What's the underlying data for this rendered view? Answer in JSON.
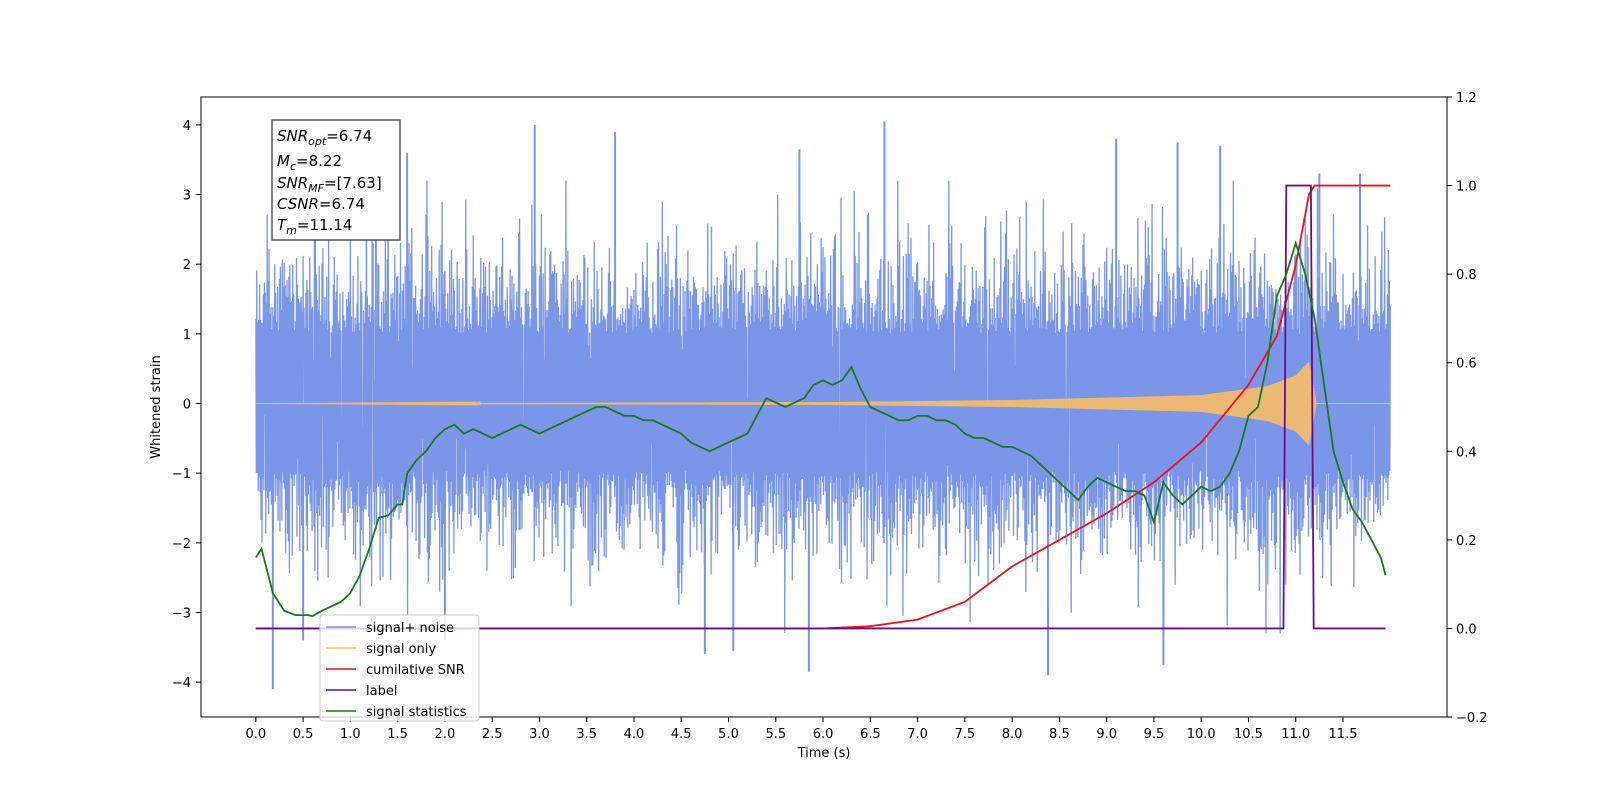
{
  "chart_data": {
    "type": "line",
    "xlabel": "Time (s)",
    "ylabel": "Whitened strain",
    "xlim": [
      -0.58,
      12.6
    ],
    "ylim": [
      -4.5,
      4.4
    ],
    "y2lim": [
      -0.2,
      1.2
    ],
    "x_ticks": [
      0.0,
      0.5,
      1.0,
      1.5,
      2.0,
      2.5,
      3.0,
      3.5,
      4.0,
      4.5,
      5.0,
      5.5,
      6.0,
      6.5,
      7.0,
      7.5,
      8.0,
      8.5,
      9.0,
      9.5,
      10.0,
      10.5,
      11.0,
      11.5
    ],
    "x_tick_labels": [
      "0.0",
      "0.5",
      "1.0",
      "1.5",
      "2.0",
      "2.5",
      "3.0",
      "3.5",
      "4.0",
      "4.5",
      "5.0",
      "5.5",
      "6.0",
      "6.5",
      "7.0",
      "7.5",
      "8.0",
      "8.5",
      "9.0",
      "9.5",
      "10.0",
      "10.5",
      "11.0",
      "11.5"
    ],
    "y_ticks": [
      -4,
      -3,
      -2,
      -1,
      0,
      1,
      2,
      3,
      4
    ],
    "y_tick_labels": [
      "−4",
      "−3",
      "−2",
      "−1",
      "0",
      "1",
      "2",
      "3",
      "4"
    ],
    "y2_ticks": [
      -0.2,
      0.0,
      0.2,
      0.4,
      0.6,
      0.8,
      1.0,
      1.2
    ],
    "y2_tick_labels": [
      "−0.2",
      "0.0",
      "0.2",
      "0.4",
      "0.6",
      "0.8",
      "1.0",
      "1.2"
    ],
    "legend_position": "lower-left",
    "grid": false,
    "colors": {
      "signal_noise": "#7b96e8",
      "signal_only": "#ffbf60",
      "cumulative_snr": "#e8141c",
      "label": "#6a0d83",
      "signal_statistics": "#1a7a1a"
    },
    "info_box": {
      "snr_opt": {
        "label": "SNR",
        "sub": "opt",
        "value": "=6.74"
      },
      "mc": {
        "label": "M",
        "sub": "c",
        "value": "=8.22"
      },
      "snr_mf": {
        "label": "SNR",
        "sub": "MF",
        "value": "=[7.63]"
      },
      "csnr": {
        "label": "CSNR",
        "sub": "",
        "value": "=6.74"
      },
      "tm": {
        "label": "T",
        "sub": "m",
        "value": "=11.14"
      }
    },
    "series": [
      {
        "name": "signal+ noise",
        "axis": "left",
        "style": "noisy-band",
        "x_range": [
          0.0,
          12.0
        ],
        "band_typical": [
          -1.6,
          2.0
        ],
        "peaks": [
          [
            1.27,
            2.4
          ],
          [
            1.6,
            3.6
          ],
          [
            2.95,
            4.0
          ],
          [
            3.8,
            3.9
          ],
          [
            5.75,
            3.65
          ],
          [
            6.65,
            4.05
          ],
          [
            9.1,
            3.8
          ],
          [
            9.75,
            3.75
          ],
          [
            10.2,
            3.7
          ],
          [
            11.25,
            3.3
          ],
          [
            11.68,
            3.3
          ]
        ],
        "troughs": [
          [
            0.18,
            -4.1
          ],
          [
            0.5,
            -3.4
          ],
          [
            2.0,
            -3.4
          ],
          [
            4.75,
            -3.6
          ],
          [
            5.05,
            -3.55
          ],
          [
            5.85,
            -3.85
          ],
          [
            8.38,
            -3.9
          ],
          [
            9.6,
            -3.75
          ]
        ]
      },
      {
        "name": "signal only",
        "axis": "left",
        "style": "chirp",
        "x_range": [
          0.0,
          12.0
        ],
        "amplitude_envelope": [
          [
            0.0,
            0.0
          ],
          [
            6.0,
            0.02
          ],
          [
            8.0,
            0.05
          ],
          [
            10.0,
            0.12
          ],
          [
            10.7,
            0.25
          ],
          [
            11.0,
            0.4
          ],
          [
            11.14,
            0.6
          ],
          [
            11.22,
            0.0
          ],
          [
            12.0,
            0.0
          ]
        ]
      },
      {
        "name": "cumilative SNR",
        "axis": "right",
        "x": [
          0.0,
          6.0,
          6.5,
          7.0,
          7.5,
          8.0,
          8.5,
          9.0,
          9.5,
          10.0,
          10.5,
          10.8,
          11.0,
          11.14,
          11.2,
          12.0
        ],
        "values": [
          0.0,
          0.0,
          0.005,
          0.02,
          0.06,
          0.14,
          0.2,
          0.26,
          0.33,
          0.42,
          0.55,
          0.66,
          0.82,
          0.98,
          1.0,
          1.0
        ]
      },
      {
        "name": "label",
        "axis": "right",
        "x": [
          0.0,
          10.87,
          10.9,
          11.16,
          11.19,
          11.95
        ],
        "values": [
          0.0,
          0.0,
          1.0,
          1.0,
          0.0,
          0.0
        ]
      },
      {
        "name": "signal statistics",
        "axis": "right",
        "x": [
          0.0,
          0.06,
          0.18,
          0.3,
          0.42,
          0.55,
          0.6,
          0.7,
          0.8,
          0.9,
          1.0,
          1.1,
          1.2,
          1.3,
          1.4,
          1.5,
          1.55,
          1.6,
          1.7,
          1.8,
          1.9,
          2.0,
          2.1,
          2.2,
          2.3,
          2.4,
          2.5,
          2.6,
          2.7,
          2.8,
          2.9,
          3.0,
          3.1,
          3.2,
          3.3,
          3.4,
          3.5,
          3.6,
          3.7,
          3.8,
          3.9,
          4.0,
          4.1,
          4.2,
          4.3,
          4.4,
          4.5,
          4.6,
          4.7,
          4.8,
          4.9,
          5.0,
          5.1,
          5.2,
          5.3,
          5.4,
          5.5,
          5.6,
          5.7,
          5.8,
          5.9,
          6.0,
          6.1,
          6.2,
          6.3,
          6.4,
          6.5,
          6.6,
          6.7,
          6.8,
          6.9,
          7.0,
          7.1,
          7.2,
          7.3,
          7.4,
          7.5,
          7.6,
          7.7,
          7.8,
          7.9,
          8.0,
          8.1,
          8.2,
          8.3,
          8.4,
          8.5,
          8.6,
          8.7,
          8.8,
          8.9,
          9.0,
          9.1,
          9.2,
          9.3,
          9.4,
          9.5,
          9.6,
          9.7,
          9.8,
          9.9,
          10.0,
          10.1,
          10.2,
          10.3,
          10.4,
          10.5,
          10.6,
          10.7,
          10.8,
          10.9,
          11.0,
          11.1,
          11.2,
          11.3,
          11.4,
          11.5,
          11.6,
          11.7,
          11.8,
          11.9,
          11.95
        ],
        "values": [
          0.16,
          0.18,
          0.08,
          0.04,
          0.03,
          0.03,
          0.028,
          0.04,
          0.05,
          0.06,
          0.08,
          0.12,
          0.18,
          0.25,
          0.255,
          0.28,
          0.28,
          0.35,
          0.38,
          0.4,
          0.43,
          0.45,
          0.46,
          0.44,
          0.45,
          0.44,
          0.43,
          0.44,
          0.45,
          0.46,
          0.45,
          0.44,
          0.45,
          0.46,
          0.47,
          0.48,
          0.49,
          0.5,
          0.5,
          0.49,
          0.48,
          0.48,
          0.47,
          0.47,
          0.46,
          0.45,
          0.44,
          0.42,
          0.41,
          0.4,
          0.41,
          0.42,
          0.43,
          0.44,
          0.48,
          0.52,
          0.51,
          0.5,
          0.51,
          0.52,
          0.55,
          0.56,
          0.55,
          0.56,
          0.59,
          0.54,
          0.5,
          0.49,
          0.48,
          0.47,
          0.47,
          0.48,
          0.48,
          0.47,
          0.47,
          0.46,
          0.44,
          0.43,
          0.43,
          0.42,
          0.41,
          0.41,
          0.4,
          0.39,
          0.37,
          0.35,
          0.33,
          0.31,
          0.29,
          0.32,
          0.34,
          0.33,
          0.32,
          0.31,
          0.31,
          0.3,
          0.24,
          0.33,
          0.3,
          0.28,
          0.3,
          0.32,
          0.31,
          0.32,
          0.35,
          0.4,
          0.48,
          0.5,
          0.6,
          0.75,
          0.8,
          0.87,
          0.8,
          0.7,
          0.55,
          0.4,
          0.33,
          0.27,
          0.24,
          0.2,
          0.16,
          0.12
        ]
      }
    ]
  }
}
